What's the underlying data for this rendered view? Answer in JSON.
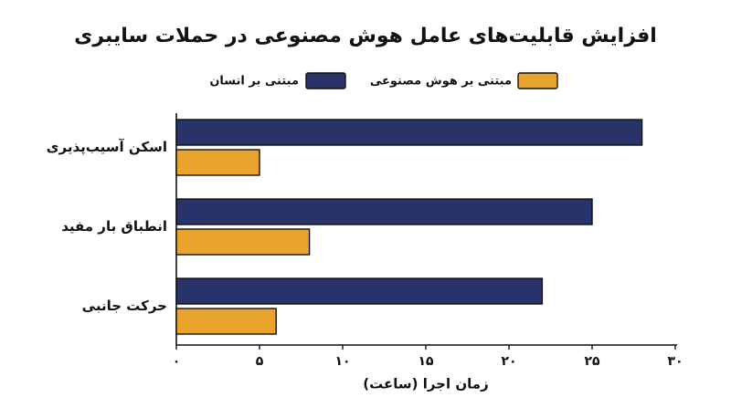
{
  "chart_data": {
    "type": "hbar",
    "title": "افزایش قابلیت‌های عامل هوش مصنوعی در حملات سایبری",
    "x_label": "زمان اجرا (ساعت)",
    "categories": [
      "اسکن آسیب‌پذیری",
      "انطباق بار مفید",
      "حرکت جانبی"
    ],
    "series": [
      {
        "name": "مبتنی بر انسان",
        "color": "#283469",
        "values": [
          28,
          25,
          22
        ]
      },
      {
        "name": "مبتنی بر هوش مصنوعی",
        "color": "#e8a42c",
        "values": [
          5,
          8,
          6
        ]
      }
    ],
    "xlim": [
      0,
      30
    ],
    "xticks": [
      {
        "value": 0,
        "label": "۰"
      },
      {
        "value": 5,
        "label": "۵"
      },
      {
        "value": 10,
        "label": "۱۰"
      },
      {
        "value": 15,
        "label": "۱۵"
      },
      {
        "value": 20,
        "label": "۲۰"
      },
      {
        "value": 25,
        "label": "۲۵"
      },
      {
        "value": 30,
        "label": "۳۰"
      }
    ],
    "legend": "top"
  }
}
